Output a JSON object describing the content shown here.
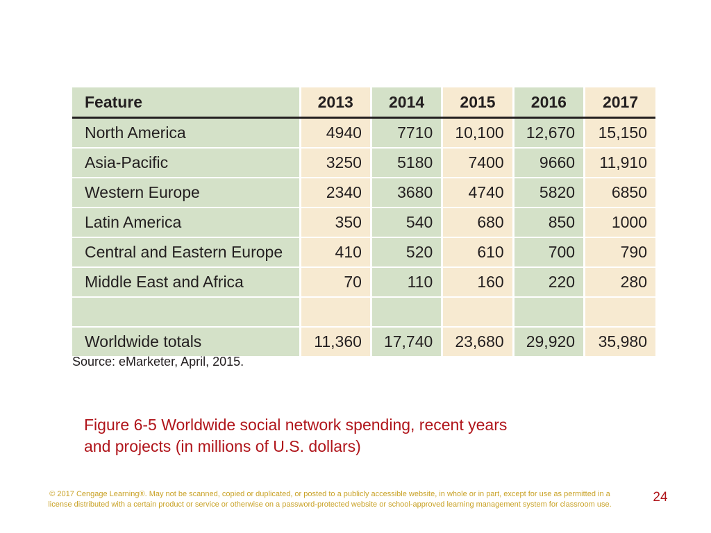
{
  "table": {
    "columns": [
      "Feature",
      "2013",
      "2014",
      "2015",
      "2016",
      "2017"
    ],
    "rows": [
      {
        "label": "North America",
        "values": [
          "4940",
          "7710",
          "10,100",
          "12,670",
          "15,150"
        ]
      },
      {
        "label": "Asia-Pacific",
        "values": [
          "3250",
          "5180",
          "7400",
          "9660",
          "11,910"
        ]
      },
      {
        "label": "Western Europe",
        "values": [
          "2340",
          "3680",
          "4740",
          "5820",
          "6850"
        ]
      },
      {
        "label": "Latin America",
        "values": [
          "350",
          "540",
          "680",
          "850",
          "1000"
        ]
      },
      {
        "label": "Central and Eastern Europe",
        "values": [
          "410",
          "520",
          "610",
          "700",
          "790"
        ]
      },
      {
        "label": "Middle East and Africa",
        "values": [
          "70",
          "110",
          "160",
          "220",
          "280"
        ]
      },
      {
        "label": "",
        "values": [
          "",
          "",
          "",
          "",
          ""
        ]
      },
      {
        "label": "Worldwide totals",
        "values": [
          "11,360",
          "17,740",
          "23,680",
          "29,920",
          "35,980"
        ]
      }
    ]
  },
  "source": "Source: eMarketer, April, 2015.",
  "caption": {
    "line1": "Figure 6-5 Worldwide social network spending, recent years",
    "line2": "and projects (in millions of U.S. dollars)"
  },
  "copyright": {
    "line1": "© 2017 Cengage Learning®. May not be scanned, copied or duplicated, or posted to a publicly accessible website, in whole or in part, except for use as permitted in a",
    "line2": "license distributed with a certain product or service or otherwise on a password-protected website or school-approved learning management system for classroom use."
  },
  "page_number": "24",
  "colors": {
    "green_cell": "#d4e1c8",
    "tan_cell": "#f7ead1",
    "caption_red": "#b0151b",
    "copyright_gold": "#c9a227"
  }
}
